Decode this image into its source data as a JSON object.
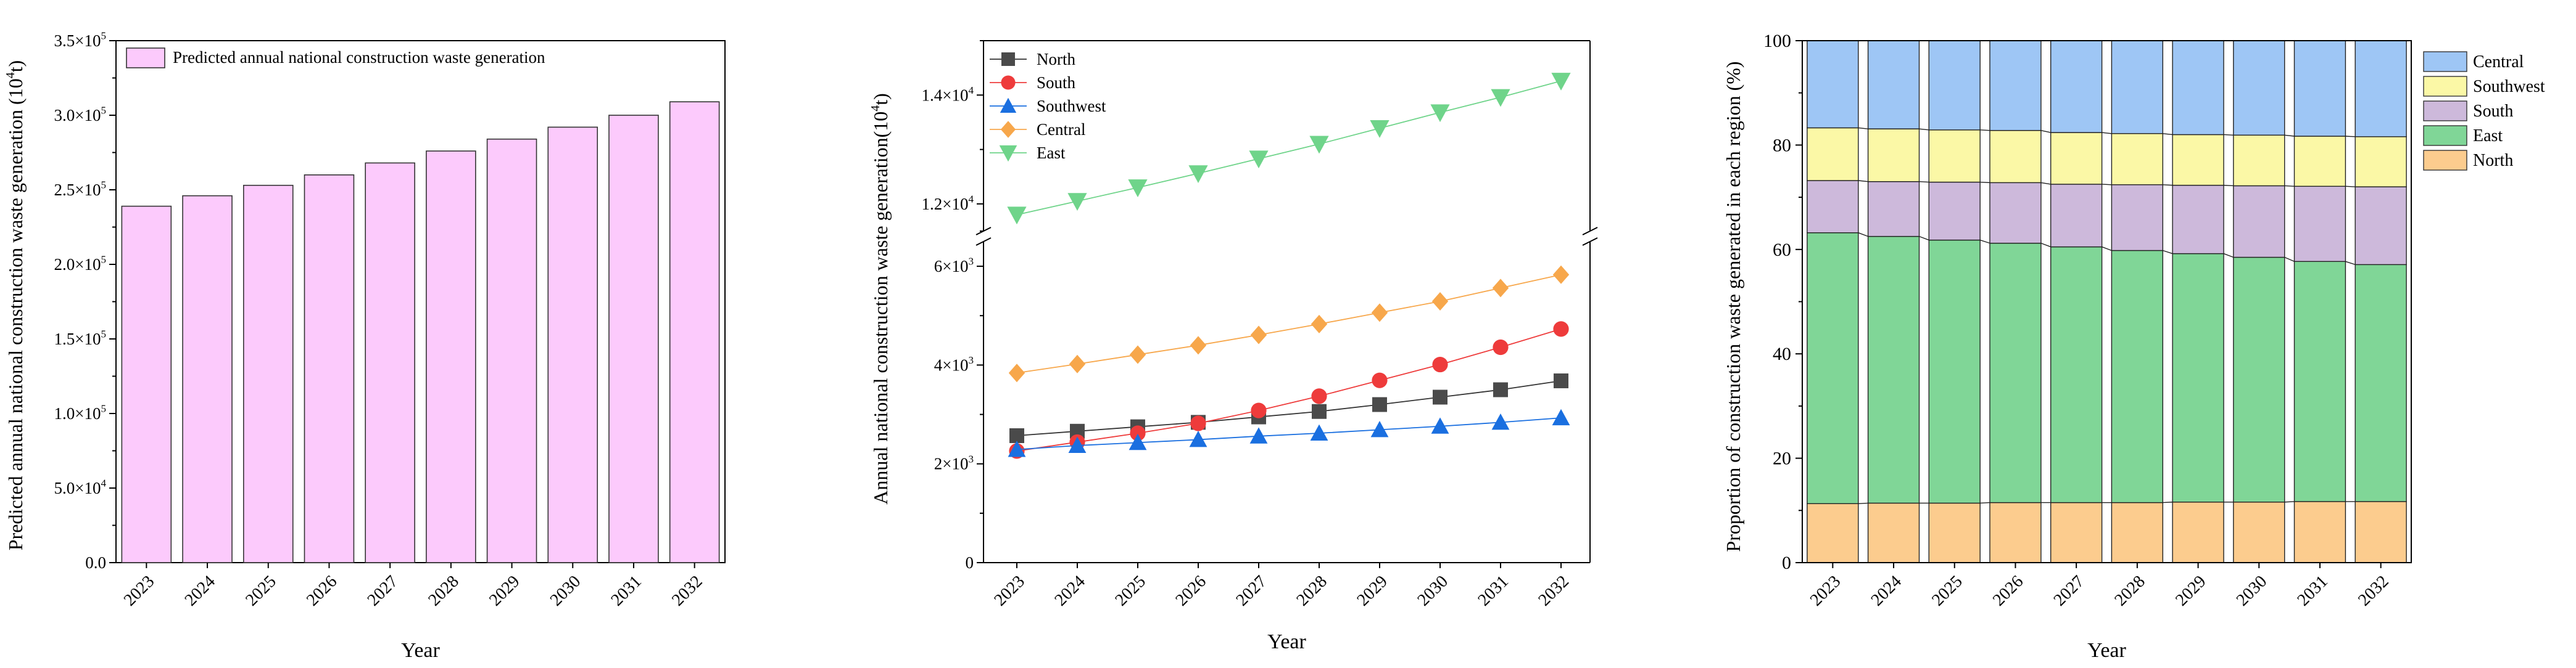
{
  "chart_data": [
    {
      "type": "bar",
      "categories": [
        "2023",
        "2024",
        "2025",
        "2026",
        "2027",
        "2028",
        "2029",
        "2030",
        "2031",
        "2032"
      ],
      "values": [
        239000,
        246000,
        253000,
        260000,
        268000,
        276000,
        284000,
        292000,
        300000,
        309000
      ],
      "ylabel_main": "Predicted annual national construction waste generation (10",
      "ylabel_sup": "4",
      "ylabel_end": "t)",
      "xlabel": "Year",
      "ylim": [
        0,
        350000
      ],
      "yticks": [
        {
          "value": 0,
          "base": "0.0",
          "exp": ""
        },
        {
          "value": 50000,
          "base": "5.0×10",
          "exp": "4"
        },
        {
          "value": 100000,
          "base": "1.0×10",
          "exp": "5"
        },
        {
          "value": 150000,
          "base": "1.5×10",
          "exp": "5"
        },
        {
          "value": 200000,
          "base": "2.0×10",
          "exp": "5"
        },
        {
          "value": 250000,
          "base": "2.5×10",
          "exp": "5"
        },
        {
          "value": 300000,
          "base": "3.0×10",
          "exp": "5"
        },
        {
          "value": 350000,
          "base": "3.5×10",
          "exp": "5"
        }
      ],
      "legend": "Predicted annual national construction waste generation",
      "legend_position": "top-left",
      "bar_color": "#fccafc"
    },
    {
      "type": "line",
      "x": [
        "2023",
        "2024",
        "2025",
        "2026",
        "2027",
        "2028",
        "2029",
        "2030",
        "2031",
        "2032"
      ],
      "series": [
        {
          "name": "North",
          "values": [
            2570,
            2660,
            2750,
            2840,
            2950,
            3060,
            3200,
            3350,
            3500,
            3680
          ],
          "color": "#4a4a4a",
          "marker": "square"
        },
        {
          "name": "South",
          "values": [
            2260,
            2440,
            2620,
            2820,
            3080,
            3370,
            3690,
            4010,
            4360,
            4730
          ],
          "color": "#ee3b3b",
          "marker": "circle"
        },
        {
          "name": "Southwest",
          "values": [
            2290,
            2370,
            2430,
            2490,
            2560,
            2620,
            2690,
            2760,
            2840,
            2930
          ],
          "color": "#1a6fe0",
          "marker": "triangle-up"
        },
        {
          "name": "Central",
          "values": [
            3840,
            4020,
            4210,
            4400,
            4610,
            4830,
            5060,
            5290,
            5560,
            5830
          ],
          "color": "#f7a74b",
          "marker": "diamond"
        },
        {
          "name": "East",
          "values": [
            11800,
            12050,
            12300,
            12560,
            12830,
            13100,
            13390,
            13680,
            13960,
            14260
          ],
          "color": "#6fd48a",
          "marker": "triangle-down"
        }
      ],
      "ylabel_main": "Annual national construction waste generation(10",
      "ylabel_sup": "4",
      "ylabel_end": "t)",
      "xlabel": "Year",
      "axis_break": true,
      "lower_ylim": [
        0,
        6500
      ],
      "upper_ylim": [
        11500,
        15000
      ],
      "lower_yticks": [
        {
          "value": 0,
          "base": "0",
          "exp": ""
        },
        {
          "value": 2000,
          "base": "2×10",
          "exp": "3"
        },
        {
          "value": 4000,
          "base": "4×10",
          "exp": "3"
        },
        {
          "value": 6000,
          "base": "6×10",
          "exp": "3"
        }
      ],
      "upper_yticks": [
        {
          "value": 12000,
          "base": "1.2×10",
          "exp": "4"
        },
        {
          "value": 14000,
          "base": "1.4×10",
          "exp": "4"
        }
      ],
      "legend_position": "top-left"
    },
    {
      "type": "bar",
      "stacked": true,
      "categories": [
        "2023",
        "2024",
        "2025",
        "2026",
        "2027",
        "2028",
        "2029",
        "2030",
        "2031",
        "2032"
      ],
      "series": [
        {
          "name": "North",
          "values": [
            11.3,
            11.4,
            11.4,
            11.5,
            11.5,
            11.5,
            11.6,
            11.6,
            11.7,
            11.7
          ],
          "color": "#fccc8e"
        },
        {
          "name": "East",
          "values": [
            51.9,
            51.1,
            50.4,
            49.7,
            49.0,
            48.3,
            47.6,
            46.9,
            46.0,
            45.4
          ],
          "color": "#80d697"
        },
        {
          "name": "South",
          "values": [
            10.0,
            10.5,
            11.1,
            11.6,
            12.0,
            12.6,
            13.1,
            13.7,
            14.4,
            14.9
          ],
          "color": "#cdb9db"
        },
        {
          "name": "Southwest",
          "values": [
            10.1,
            10.1,
            10.0,
            10.0,
            9.9,
            9.8,
            9.7,
            9.7,
            9.6,
            9.6
          ],
          "color": "#fbf8a6"
        },
        {
          "name": "Central",
          "values": [
            16.7,
            16.9,
            17.1,
            17.2,
            17.6,
            17.8,
            18.0,
            18.1,
            18.3,
            18.4
          ],
          "color": "#9ec6f5"
        }
      ],
      "legend_order": [
        "Central",
        "Southwest",
        "South",
        "East",
        "North"
      ],
      "ylabel": "Proportion of construction waste generated in each region (%)",
      "xlabel": "Year",
      "ylim": [
        0,
        100
      ],
      "yticks": [
        0,
        20,
        40,
        60,
        80,
        100
      ],
      "legend_position": "outside-right"
    }
  ]
}
